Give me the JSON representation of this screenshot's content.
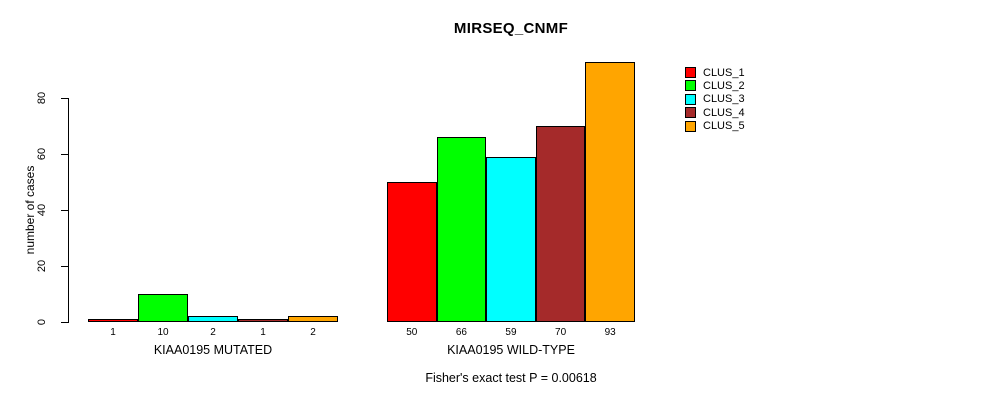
{
  "title": "MIRSEQ_CNMF",
  "caption": "Fisher's exact test P = 0.00618",
  "chart_data": {
    "type": "bar",
    "title": "MIRSEQ_CNMF",
    "xlabel": "",
    "ylabel": "number of cases",
    "ylim": [
      0,
      93
    ],
    "yticks": [
      0,
      20,
      40,
      60,
      80
    ],
    "grid": false,
    "bar_value_labels_shown": true,
    "legend_position": "top-right",
    "series": [
      {
        "name": "CLUS_1",
        "color": "#FF0000"
      },
      {
        "name": "CLUS_2",
        "color": "#00FF00"
      },
      {
        "name": "CLUS_3",
        "color": "#00FFFF"
      },
      {
        "name": "CLUS_4",
        "color": "#A52A2A"
      },
      {
        "name": "CLUS_5",
        "color": "#FFA500"
      }
    ],
    "groups": [
      {
        "label": "KIAA0195 MUTATED",
        "values": [
          1,
          10,
          2,
          1,
          2
        ]
      },
      {
        "label": "KIAA0195 WILD-TYPE",
        "values": [
          50,
          66,
          59,
          70,
          93
        ]
      }
    ],
    "annotation": "Fisher's exact test P = 0.00618"
  }
}
